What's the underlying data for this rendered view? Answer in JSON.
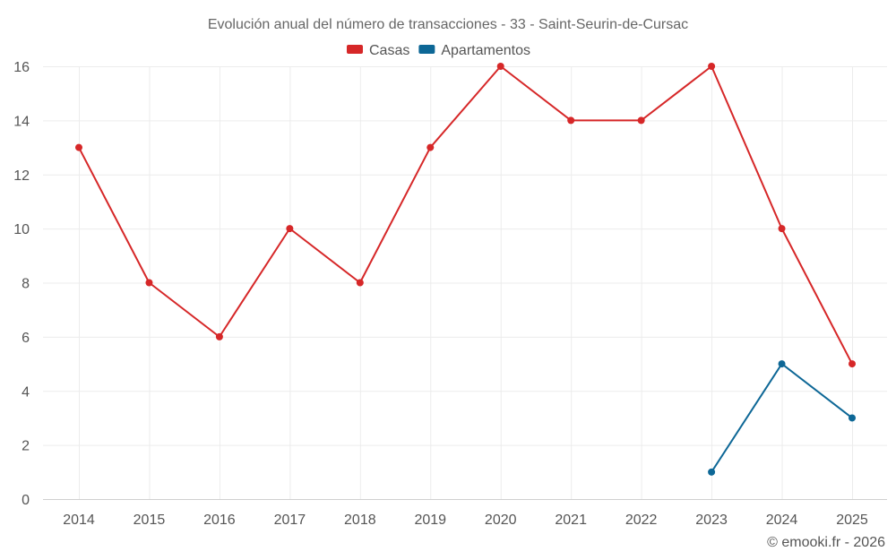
{
  "chart_data": {
    "type": "line",
    "title": "Evolución anual del número de transacciones - 33 - Saint-Seurin-de-Cursac",
    "categories": [
      "2014",
      "2015",
      "2016",
      "2017",
      "2018",
      "2019",
      "2020",
      "2021",
      "2022",
      "2023",
      "2024",
      "2025"
    ],
    "series": [
      {
        "name": "Casas",
        "color": "#d62728",
        "values": [
          13,
          8,
          6,
          10,
          8,
          13,
          16,
          14,
          14,
          16,
          10,
          5
        ]
      },
      {
        "name": "Apartamentos",
        "color": "#0d6796",
        "values": [
          null,
          null,
          null,
          null,
          null,
          null,
          null,
          null,
          null,
          1,
          5,
          3
        ]
      }
    ],
    "y_ticks": [
      0,
      2,
      4,
      6,
      8,
      10,
      12,
      14,
      16
    ],
    "ylim": [
      0,
      16
    ],
    "xlabel": "",
    "ylabel": "",
    "grid": true,
    "legend_position": "top-center"
  },
  "credit": "© emooki.fr - 2026"
}
